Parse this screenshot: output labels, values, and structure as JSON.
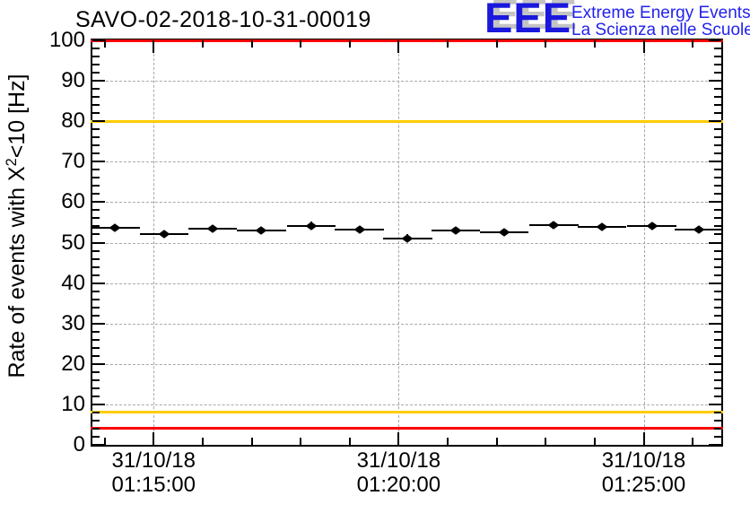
{
  "header": {
    "title": "SAVO-02-2018-10-31-00019"
  },
  "logo": {
    "letters": "EEE",
    "line1": "Extreme Energy Events",
    "line2": "La Scienza nelle Scuole",
    "text_color": "#2222ee",
    "letter_color": "#1a18dd",
    "shadow_color": "#c4c4c4"
  },
  "chart_data": {
    "type": "scatter",
    "title": "SAVO-02-2018-10-31-00019",
    "ylabel": "Rate of events with X^2<10 [Hz]",
    "ylabel_parts": {
      "prefix": "Rate of events with X",
      "sup": "2",
      "suffix": "<10 [Hz]"
    },
    "ylim": [
      0,
      100
    ],
    "y_major_step": 10,
    "y_minor_step": 2,
    "x_range": [
      "01:13:45",
      "01:26:35"
    ],
    "x_tick_date": "31/10/18",
    "x_major_ticks": [
      "01:15:00",
      "01:20:00",
      "01:25:00"
    ],
    "x_minor_step_minutes": 1,
    "grid": true,
    "marker": "filled-diamond",
    "marker_color": "#000000",
    "x_error_minutes": 0.5,
    "y_error_hz": 0.9,
    "points": [
      {
        "t": "01:14:13",
        "rate": 53.6
      },
      {
        "t": "01:15:13",
        "rate": 52.1
      },
      {
        "t": "01:16:12",
        "rate": 53.5
      },
      {
        "t": "01:17:12",
        "rate": 53.0
      },
      {
        "t": "01:18:13",
        "rate": 54.2
      },
      {
        "t": "01:19:12",
        "rate": 53.2
      },
      {
        "t": "01:20:11",
        "rate": 51.1
      },
      {
        "t": "01:21:10",
        "rate": 52.9
      },
      {
        "t": "01:22:09",
        "rate": 52.6
      },
      {
        "t": "01:23:10",
        "rate": 54.3
      },
      {
        "t": "01:24:09",
        "rate": 53.9
      },
      {
        "t": "01:25:10",
        "rate": 54.1
      },
      {
        "t": "01:26:08",
        "rate": 53.3
      }
    ],
    "reference_lines": [
      {
        "y": 100,
        "color": "#ff0000",
        "name": "upper-alarm"
      },
      {
        "y": 80,
        "color": "#ffcc00",
        "name": "upper-warning"
      },
      {
        "y": 8,
        "color": "#ffcc00",
        "name": "lower-warning"
      },
      {
        "y": 4,
        "color": "#ff0000",
        "name": "lower-alarm"
      }
    ],
    "grid_color": "#a8a8a8",
    "legend": null
  }
}
